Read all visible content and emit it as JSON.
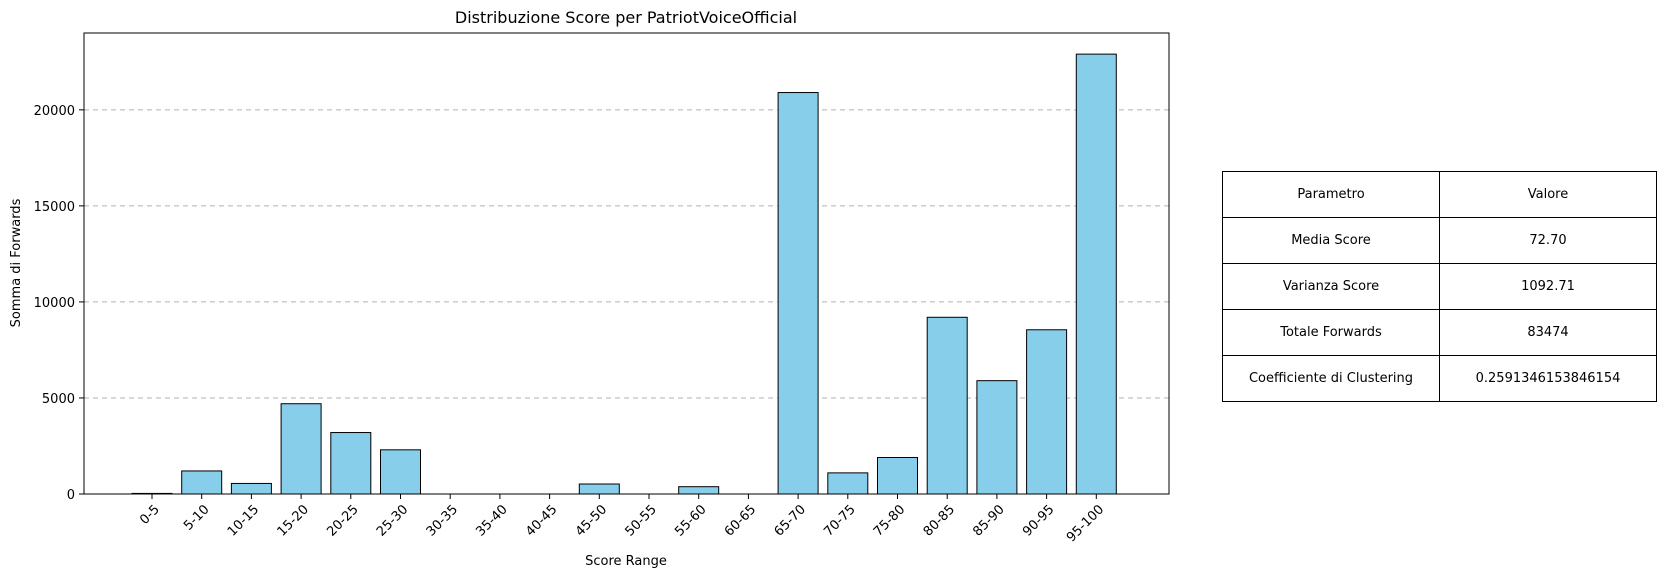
{
  "chart_data": {
    "type": "bar",
    "title": "Distribuzione Score per PatriotVoiceOfficial",
    "xlabel": "Score Range",
    "ylabel": "Somma di Forwards",
    "categories": [
      "0-5",
      "5-10",
      "10-15",
      "15-20",
      "20-25",
      "25-30",
      "30-35",
      "35-40",
      "40-45",
      "45-50",
      "50-55",
      "55-60",
      "60-65",
      "65-70",
      "70-75",
      "75-80",
      "80-85",
      "85-90",
      "90-95",
      "95-100"
    ],
    "values": [
      30,
      1200,
      550,
      4700,
      3200,
      2300,
      0,
      0,
      0,
      520,
      0,
      380,
      0,
      20900,
      1100,
      1900,
      9200,
      5900,
      8550,
      22900
    ],
    "ylim": [
      0,
      24000
    ],
    "yticks": [
      0,
      5000,
      10000,
      15000,
      20000
    ],
    "grid": "y-dashed",
    "colors": {
      "bar_fill": "#87ceeb",
      "bar_edge": "#000000",
      "grid": "#b0b0b0"
    }
  },
  "table": {
    "headers": [
      "Parametro",
      "Valore"
    ],
    "rows": [
      [
        "Media Score",
        "72.70"
      ],
      [
        "Varianza Score",
        "1092.71"
      ],
      [
        "Totale Forwards",
        "83474"
      ],
      [
        "Coefficiente di Clustering",
        "0.2591346153846154"
      ]
    ]
  }
}
